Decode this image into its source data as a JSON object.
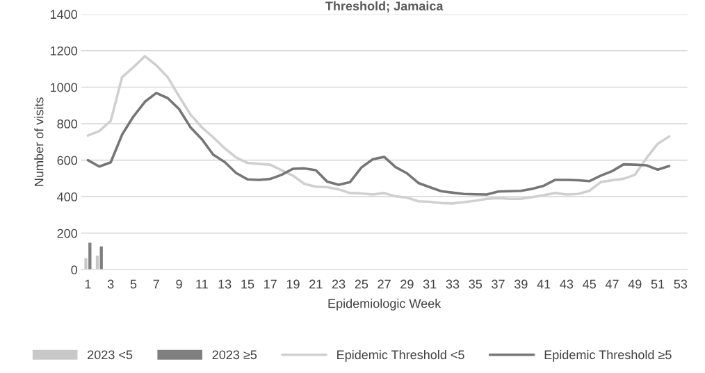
{
  "chart_data": {
    "type": "bar",
    "title": "Threshold; Jamaica",
    "xlabel": "Epidemiologic Week",
    "ylabel": "Number of visits",
    "categories": [
      "1",
      null,
      "3",
      null,
      "5",
      null,
      "7",
      null,
      "9",
      null,
      "11",
      null,
      "13",
      null,
      "15",
      null,
      "17",
      null,
      "19",
      null,
      "21",
      null,
      "23",
      null,
      "25",
      null,
      "27",
      null,
      "29",
      null,
      "31",
      null,
      "33",
      null,
      "35",
      null,
      "37",
      null,
      "39",
      null,
      "41",
      null,
      "43",
      null,
      "45",
      null,
      "47",
      null,
      "49",
      null,
      "51",
      null,
      "53"
    ],
    "series": [
      {
        "name": "2023 <5",
        "color": "#c8c8c8",
        "values": [
          65,
          80,
          null,
          null,
          null,
          null,
          null,
          null,
          null,
          null,
          null,
          null,
          null,
          null,
          null,
          null,
          null,
          null,
          null,
          null,
          null,
          null,
          null,
          null,
          null,
          null,
          null,
          null,
          null,
          null,
          null,
          null,
          null,
          null,
          null,
          null,
          null,
          null,
          null,
          null,
          null,
          null,
          null,
          null,
          null,
          null,
          null,
          null,
          null,
          null,
          null,
          null,
          null
        ]
      },
      {
        "name": "2023 ≥5",
        "color": "#7f7f7f",
        "values": [
          150,
          130,
          null,
          null,
          null,
          null,
          null,
          null,
          null,
          null,
          null,
          null,
          null,
          null,
          null,
          null,
          null,
          null,
          null,
          null,
          null,
          null,
          null,
          null,
          null,
          null,
          null,
          null,
          null,
          null,
          null,
          null,
          null,
          null,
          null,
          null,
          null,
          null,
          null,
          null,
          null,
          null,
          null,
          null,
          null,
          null,
          null,
          null,
          null,
          null,
          null,
          null,
          null
        ]
      },
      {
        "name": "Epidemic Threshold <5",
        "type": "line",
        "color": "#d0d0d0",
        "values": [
          735,
          760,
          815,
          1055,
          1110,
          1170,
          1120,
          1055,
          950,
          850,
          780,
          725,
          665,
          615,
          585,
          580,
          575,
          545,
          515,
          470,
          455,
          452,
          440,
          420,
          418,
          412,
          420,
          402,
          395,
          375,
          372,
          365,
          363,
          370,
          378,
          388,
          392,
          388,
          388,
          398,
          408,
          420,
          412,
          415,
          432,
          480,
          490,
          498,
          520,
          610,
          690,
          730,
          null
        ]
      },
      {
        "name": "Epidemic Threshold ≥5",
        "type": "line",
        "color": "#767676",
        "values": [
          600,
          565,
          588,
          740,
          840,
          920,
          968,
          940,
          880,
          780,
          715,
          630,
          590,
          530,
          495,
          492,
          497,
          520,
          553,
          555,
          545,
          482,
          465,
          480,
          560,
          605,
          618,
          562,
          528,
          475,
          452,
          430,
          422,
          415,
          413,
          412,
          428,
          430,
          432,
          443,
          460,
          492,
          492,
          490,
          485,
          515,
          540,
          577,
          575,
          572,
          548,
          568,
          null
        ]
      }
    ],
    "ylim": [
      0,
      1400
    ],
    "yticks": [
      0,
      200,
      400,
      600,
      800,
      1000,
      1200,
      1400
    ],
    "grid": "y",
    "legend": "bottom"
  }
}
